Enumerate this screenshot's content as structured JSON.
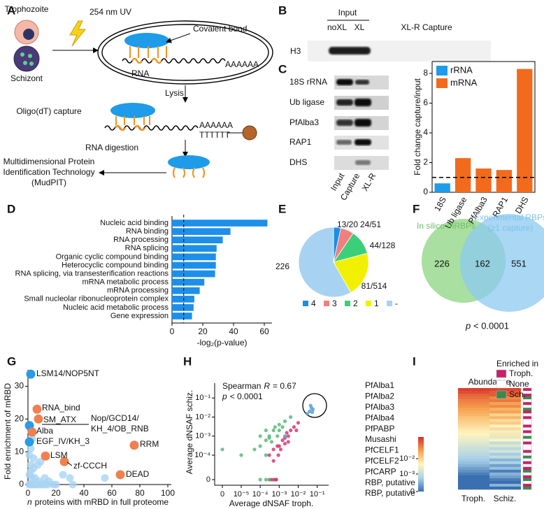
{
  "panel_labels": [
    "A",
    "B",
    "C",
    "D",
    "E",
    "F",
    "G",
    "H",
    "I"
  ],
  "diagram": {
    "stages": [
      "Trophozoite",
      "Schizont"
    ],
    "uv": "254 nm UV",
    "bond": "Covalent bond",
    "rna": "RNA",
    "polya": "AAAAAA",
    "lysis": "Lysis",
    "capture": "Oligo(dT) capture",
    "polya2": "AAAAAA",
    "oligo": "TTTTTT",
    "digestion": "RNA digestion",
    "mudpit": [
      "Multidimensional Protein",
      "Identification Technology",
      "(MudPIT)"
    ]
  },
  "gel_b": {
    "group": "Input",
    "lanes": [
      "noXL",
      "XL"
    ],
    "capture": "XL-R Capture",
    "row": "H3"
  },
  "gel_c": {
    "rows": [
      "18S rRNA",
      "Ub ligase",
      "PfAlba3",
      "RAP1",
      "DHS"
    ],
    "lanes": [
      "Input",
      "Capture",
      "XL-R"
    ]
  },
  "venn": {
    "left_label": "In silico mRBPs",
    "right_label": [
      "Experimental RBPs",
      "(≥1 capture)"
    ],
    "counts": [
      226,
      162,
      551
    ],
    "p_label": "p",
    "p_text": "< 0.0001"
  },
  "chart_data": [
    {
      "type": "bar",
      "categories": [
        "18S",
        "Ub ligase",
        "PfAlba3",
        "RAP1",
        "DHS"
      ],
      "series": [
        {
          "name": "rRNA",
          "color": "#1e9be9",
          "values": [
            0.6,
            null,
            null,
            null,
            null
          ]
        },
        {
          "name": "mRNA",
          "color": "#f26b1d",
          "values": [
            null,
            2.3,
            1.6,
            1.5,
            8.3
          ]
        }
      ],
      "ylabel": "Fold change capture/input",
      "ylim": [
        0,
        8.8
      ],
      "yticks": [
        0,
        2,
        4,
        6,
        8
      ],
      "reference_line": 1,
      "legend": "upper left"
    },
    {
      "type": "hbar",
      "categories": [
        "Nucleic acid binding",
        "RNA binding",
        "RNA processing",
        "RNA splicing",
        "Organic cyclic compound binding",
        "Heterocyclic compound binding",
        "RNA splicing, via transesterification reactions",
        "mRNA metabolic process",
        "mRNA processing",
        "Small nucleolar ribonucleoprotein complex",
        "Nucleic acid metabolic process",
        "Gene expression"
      ],
      "values": [
        62,
        38,
        33,
        29,
        28.5,
        28.5,
        28,
        21,
        18,
        14.5,
        14,
        13
      ],
      "color": "#1e8fe8",
      "xlabel": "-log₂(p-value)",
      "xlim": [
        0,
        65
      ],
      "xticks": [
        0,
        20,
        40,
        60
      ],
      "reference_line": 7.6
    },
    {
      "type": "pie",
      "categories": [
        "13/20",
        "24/51",
        "44/128",
        "81/514",
        "226"
      ],
      "legend": [
        "4",
        "3",
        "2",
        "1",
        "-"
      ],
      "values": [
        13,
        24,
        44,
        81,
        226
      ],
      "colors": [
        "#1a8fe6",
        "#f08080",
        "#3ccf7a",
        "#f0f000",
        "#a8d2f2"
      ]
    },
    {
      "type": "scatter",
      "ylabel": "Fold enrichment of mRBD",
      "xlabel_italic": "n",
      "xlabel": "proteins with mRBD in full proteome",
      "xlim": [
        0,
        100
      ],
      "xticks": [
        0,
        20,
        40,
        60,
        80,
        100
      ],
      "ylim": [
        0,
        35
      ],
      "yticks": [
        0,
        10,
        20,
        30
      ],
      "series": [
        {
          "color": "#a8d4f2",
          "x": [
            1,
            2,
            3,
            4,
            5,
            6,
            8,
            10,
            12,
            14,
            3,
            5,
            2,
            4,
            7,
            9,
            1,
            2,
            3,
            1,
            20,
            25,
            32,
            30,
            55,
            6,
            8,
            4,
            2,
            15,
            18,
            12
          ],
          "values": [
            0,
            0,
            0,
            0,
            0,
            0,
            0,
            0,
            0,
            0,
            2,
            2,
            4,
            5,
            6,
            7,
            9,
            11,
            14,
            3,
            0,
            3,
            0,
            2,
            2,
            0,
            1,
            8,
            6,
            1,
            0,
            2
          ]
        },
        {
          "color": "#2a9be6",
          "x": [
            2,
            1,
            1
          ],
          "values": [
            33.7,
            13,
            18
          ]
        },
        {
          "color": "#f08050",
          "x": [
            6.5,
            7.5,
            3,
            76,
            12.5,
            26,
            66
          ],
          "values": [
            23,
            20,
            16,
            12,
            8.7,
            7,
            3
          ]
        }
      ],
      "annotations": [
        "LSM14/NOP5NT",
        "RNA_bind",
        "SM_ATX",
        "Alba",
        "Nop/GCD14/",
        "KH_4/OB_RNB",
        "EGF_IV/KH_3",
        "RRM",
        "LSM",
        "zf-CCCH",
        "DEAD"
      ]
    },
    {
      "type": "scatter",
      "xscale": "log",
      "yscale": "log",
      "xlabel": "Average dNSAF troph.",
      "ylabel": "Average dNSAF schiz.",
      "xlim": [
        0,
        0.4
      ],
      "ylim": [
        0,
        0.6
      ],
      "xticks": [
        0,
        {
          "value": 1e-05,
          "label": "10⁻⁵"
        },
        {
          "value": 0.0001,
          "label": "10⁻⁴"
        },
        {
          "value": 0.001,
          "label": "10⁻³"
        },
        {
          "value": 0.01,
          "label": "10⁻²"
        },
        {
          "value": 0.1,
          "label": "10⁻¹"
        }
      ],
      "yticks": [
        0,
        {
          "value": 0.0001,
          "label": "10⁻⁴"
        },
        {
          "value": 0.001,
          "label": "10⁻³"
        },
        {
          "value": 0.01,
          "label": "10⁻²"
        },
        {
          "value": 0.1,
          "label": "10⁻¹"
        }
      ],
      "series": [
        {
          "color": "#5cb87a",
          "x": [
            0.0001,
            0.0002,
            0.0003,
            0.0005,
            0.0002,
            0.0004,
            0.0001,
            0.0006,
            0.0003,
            0.0008,
            0.001,
            0.002,
            1e-05,
            5e-05,
            0,
            0.0002,
            0.0003,
            0.0015,
            0.004,
            0.0001,
            0.0002,
            0.0005,
            0.0007,
            0.0003,
            0.001
          ],
          "values": [
            0.0003,
            0.0006,
            0.001,
            0.002,
            0.0001,
            0.0005,
            0,
            0.003,
            0,
            0.001,
            0.004,
            0.006,
            0.0001,
            0.0002,
            0.0002,
            0,
            0,
            0.003,
            0.01,
            0.001,
            0.002,
            0,
            0,
            0.0008,
            0.002
          ]
        },
        {
          "color": "#d63a6e",
          "x": [
            0.0003,
            0.0005,
            0.0008,
            0.001,
            0.0015,
            0.002,
            0.003,
            0.004,
            0.006,
            0.008,
            0.01,
            0.002,
            0.0005,
            0.0007,
            0.0012,
            0.0025,
            0.0004,
            0.0009,
            0.0006,
            0.003
          ],
          "values": [
            0.0001,
            0.0002,
            0.0003,
            0.0003,
            0.0006,
            0.0008,
            0.001,
            0.002,
            0.003,
            0.002,
            0.005,
            0.0004,
            5e-05,
            0,
            0.0002,
            0.0015,
            0,
            0.0001,
            0,
            0.0005
          ]
        },
        {
          "color": "#5aa0d8",
          "x": [
            0.03,
            0.04,
            0.05,
            0.06,
            0.045,
            0.055,
            0.002
          ],
          "values": [
            0.015,
            0.02,
            0.03,
            0.025,
            0.04,
            0.018,
            0.001
          ]
        }
      ],
      "stat_text": [
        "Spearman",
        "R",
        "= 0.67"
      ],
      "p_text": [
        "p",
        "< 0.0001"
      ],
      "highlighted": [
        "PfAlba1",
        "PfAlba2",
        "PfAlba3",
        "PfAlba4",
        "PfPABP",
        "Musashi",
        "PfCELF1",
        "PfCELF2",
        "PfCARP",
        "RBP, putative",
        "RBP, putative"
      ]
    },
    {
      "type": "heatmap",
      "title": "Abundance",
      "series": [
        {
          "name": "Troph.",
          "values": [
            0.2,
            0.15,
            0.1,
            0.08,
            0.06,
            0.05,
            0.04,
            0.03,
            0.025,
            0.02,
            0.015,
            0.012,
            0.01,
            0.008,
            0.006,
            0.005,
            0.004,
            0.003,
            0.0025,
            0.002,
            0.0015,
            0.0012,
            0.001,
            0.0008,
            0.0006,
            0.0005,
            0.0004,
            0.0003,
            0.0002,
            0.00015,
            0.0001,
            0,
            0,
            0,
            0,
            0
          ]
        },
        {
          "name": "Schiz.",
          "values": [
            0.18,
            0.12,
            0.12,
            0.05,
            0.07,
            0.03,
            0.05,
            0.02,
            0.03,
            0.01,
            0.02,
            0.008,
            0.012,
            0.004,
            0.008,
            0.003,
            0.006,
            0.002,
            0.004,
            0.001,
            0.002,
            0.0008,
            0.0015,
            0.0005,
            0.001,
            0.0003,
            0.0006,
            0.0002,
            0.0004,
            0.0001,
            0.0003,
            0.0002,
            0.0001,
            0,
            0.0003,
            0
          ]
        }
      ],
      "enriched": [
        "Troph.",
        "None",
        "Troph.",
        "Sch.",
        "None",
        "Troph.",
        "None",
        "Sch.",
        "Troph.",
        "None",
        "Troph.",
        "None",
        "None",
        "Troph.",
        "None",
        "Troph.",
        "None",
        "Sch.",
        "None",
        "Troph.",
        "None",
        "None",
        "Troph.",
        "None",
        "Sch.",
        "None",
        "Troph.",
        "None",
        "Troph.",
        "Sch.",
        "None",
        "Troph.",
        "Sch.",
        "None",
        "Troph.",
        "Sch."
      ],
      "legend_title": "Enriched in",
      "legend": [
        {
          "name": "Troph.",
          "color": "#c8206a"
        },
        {
          "name": "None",
          "color": "#ffffff"
        },
        {
          "name": "Sch.",
          "color": "#3a8a4a"
        }
      ],
      "clim": [
        0,
        0.25
      ],
      "cticks": [
        0,
        {
          "value": 0.001,
          "label": "10⁻³"
        },
        {
          "value": 0.01,
          "label": "10⁻²"
        }
      ]
    }
  ]
}
